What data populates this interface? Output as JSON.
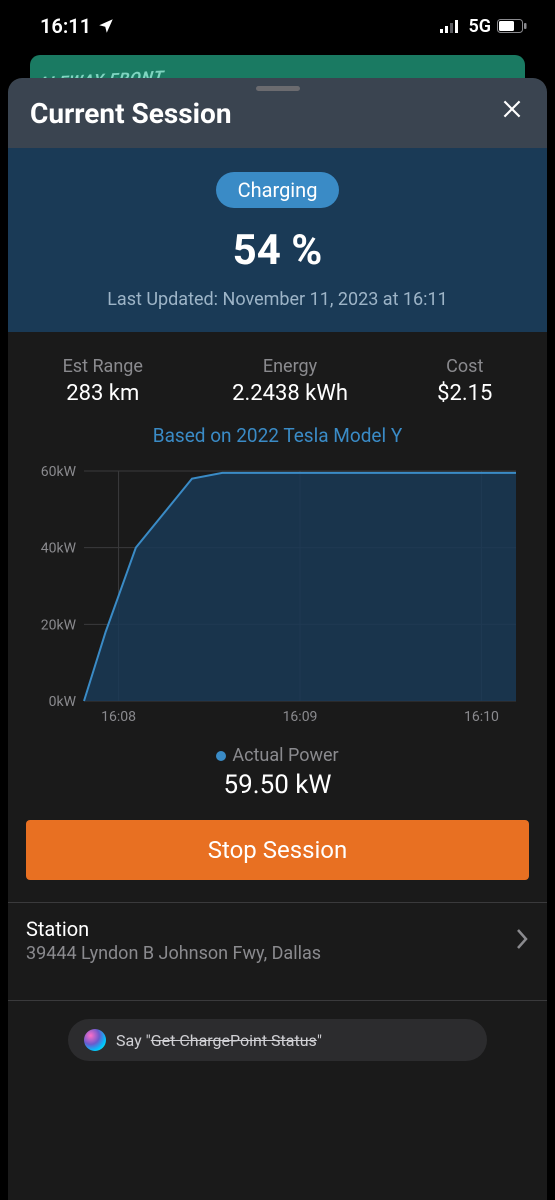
{
  "status_bar": {
    "time": "16:11",
    "network": "5G"
  },
  "background_card_text": "ALEWAY FRONT",
  "sheet": {
    "title": "Current Session"
  },
  "hero": {
    "status_pill": "Charging",
    "percent": "54 %",
    "last_updated": "Last Updated: November 11, 2023 at 16:11",
    "background_color": "#1a3a56",
    "pill_color": "#3a8bc6"
  },
  "stats": {
    "range_label": "Est Range",
    "range_value": "283 km",
    "energy_label": "Energy",
    "energy_value": "2.2438 kWh",
    "cost_label": "Cost",
    "cost_value": "$2.15"
  },
  "based_on": "Based on 2022 Tesla Model Y",
  "chart": {
    "type": "area",
    "y_ticks": [
      "0kW",
      "20kW",
      "40kW",
      "60kW"
    ],
    "x_ticks": [
      "16:08",
      "16:09",
      "16:10"
    ],
    "ylim": [
      0,
      60
    ],
    "series": {
      "name": "Actual Power",
      "color": "#3a8bc6",
      "fill_color": "#1a3a56",
      "fill_opacity": 0.85,
      "line_width": 2,
      "points": [
        {
          "x": 0.0,
          "y": 0
        },
        {
          "x": 0.05,
          "y": 18
        },
        {
          "x": 0.12,
          "y": 40
        },
        {
          "x": 0.25,
          "y": 58
        },
        {
          "x": 0.32,
          "y": 59.5
        },
        {
          "x": 1.0,
          "y": 59.5
        }
      ]
    },
    "grid_color": "#3a3a3c",
    "background_color": "#1a1a1a",
    "axis_label_color": "#8a8a8e",
    "axis_fontsize": 14
  },
  "legend_label": "Actual Power",
  "current_power": "59.50 kW",
  "stop_button": {
    "label": "Stop Session",
    "color": "#e87022"
  },
  "station": {
    "title": "Station",
    "address": "39444 Lyndon B Johnson Fwy, Dallas"
  },
  "siri": {
    "prefix": "Say \"",
    "command": "Get ChargePoint Status",
    "suffix": "\""
  }
}
